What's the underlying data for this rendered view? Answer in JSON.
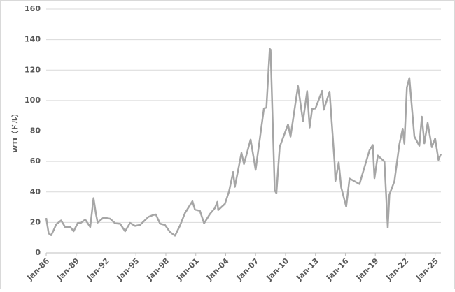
{
  "chart_data": {
    "type": "line",
    "y_label": "WTI（ドル）",
    "x": [
      "1986-01",
      "1986-04",
      "1986-07",
      "1986-10",
      "1987-01",
      "1987-07",
      "1987-12",
      "1988-06",
      "1988-10",
      "1989-03",
      "1989-07",
      "1989-12",
      "1990-06",
      "1990-10",
      "1991-01",
      "1991-03",
      "1991-10",
      "1992-06",
      "1992-12",
      "1993-06",
      "1993-12",
      "1994-06",
      "1994-12",
      "1995-06",
      "1996-04",
      "1996-10",
      "1997-01",
      "1997-06",
      "1997-12",
      "1998-06",
      "1998-12",
      "1999-06",
      "1999-12",
      "2000-09",
      "2000-12",
      "2001-06",
      "2001-11",
      "2002-06",
      "2002-12",
      "2003-03",
      "2003-04",
      "2003-12",
      "2004-05",
      "2004-10",
      "2004-12",
      "2005-08",
      "2005-11",
      "2006-07",
      "2007-01",
      "2007-11",
      "2008-02",
      "2008-06",
      "2008-07",
      "2008-12",
      "2009-02",
      "2009-06",
      "2010-04",
      "2010-07",
      "2011-04",
      "2011-10",
      "2012-03",
      "2012-06",
      "2012-09",
      "2013-01",
      "2013-09",
      "2013-11",
      "2014-06",
      "2014-12",
      "2015-01",
      "2015-05",
      "2015-08",
      "2016-02",
      "2016-06",
      "2017-06",
      "2018-06",
      "2018-10",
      "2018-12",
      "2019-04",
      "2019-12",
      "2020-04",
      "2020-06",
      "2020-12",
      "2021-06",
      "2021-10",
      "2021-12",
      "2022-03",
      "2022-06",
      "2022-12",
      "2023-06",
      "2023-09",
      "2023-12",
      "2024-04",
      "2024-09",
      "2025-01",
      "2025-05",
      "2025-08"
    ],
    "series": [
      {
        "name": "WTI",
        "color": "#a6a6a6",
        "values": [
          22.9,
          12.8,
          11.6,
          14.9,
          18.7,
          21.3,
          16.8,
          17.0,
          14.2,
          19.6,
          19.8,
          21.9,
          17.0,
          35.9,
          25.2,
          19.9,
          23.2,
          22.4,
          19.4,
          19.1,
          14.2,
          19.7,
          17.7,
          18.4,
          23.6,
          24.9,
          25.2,
          19.2,
          18.3,
          13.7,
          11.3,
          17.9,
          26.1,
          33.9,
          28.4,
          27.6,
          19.4,
          25.5,
          29.4,
          33.5,
          28.1,
          32.1,
          40.3,
          53.1,
          43.3,
          65.6,
          58.3,
          74.4,
          54.5,
          94.8,
          95.4,
          133.9,
          133.4,
          41.1,
          39.1,
          69.6,
          84.3,
          76.3,
          109.5,
          86.4,
          106.2,
          82.3,
          94.5,
          94.8,
          106.3,
          93.9,
          105.8,
          59.3,
          47.2,
          59.3,
          42.9,
          30.3,
          48.8,
          45.2,
          67.3,
          70.8,
          49.0,
          63.9,
          59.9,
          16.6,
          38.3,
          47.0,
          71.4,
          81.5,
          71.7,
          108.5,
          114.8,
          76.4,
          70.3,
          89.4,
          71.9,
          85.4,
          69.4,
          75.1,
          61.0,
          64.9
        ]
      }
    ],
    "xlim": [
      "1986-01",
      "2025-08"
    ],
    "xticks": [
      {
        "value": "1986-01",
        "label": "Jan-86"
      },
      {
        "value": "1989-01",
        "label": "Jan-89"
      },
      {
        "value": "1992-01",
        "label": "Jan-92"
      },
      {
        "value": "1995-01",
        "label": "Jan-95"
      },
      {
        "value": "1998-01",
        "label": "Jan-98"
      },
      {
        "value": "2001-01",
        "label": "Jan-01"
      },
      {
        "value": "2004-01",
        "label": "Jan-04"
      },
      {
        "value": "2007-01",
        "label": "Jan-07"
      },
      {
        "value": "2010-01",
        "label": "Jan-10"
      },
      {
        "value": "2013-01",
        "label": "Jan-13"
      },
      {
        "value": "2016-01",
        "label": "Jan-16"
      },
      {
        "value": "2019-01",
        "label": "Jan-19"
      },
      {
        "value": "2022-01",
        "label": "Jan-22"
      },
      {
        "value": "2025-01",
        "label": "Jan-25"
      }
    ],
    "ylim": [
      0,
      160
    ],
    "yticks": [
      0,
      20,
      40,
      60,
      80,
      100,
      120,
      140,
      160
    ],
    "grid": true
  }
}
